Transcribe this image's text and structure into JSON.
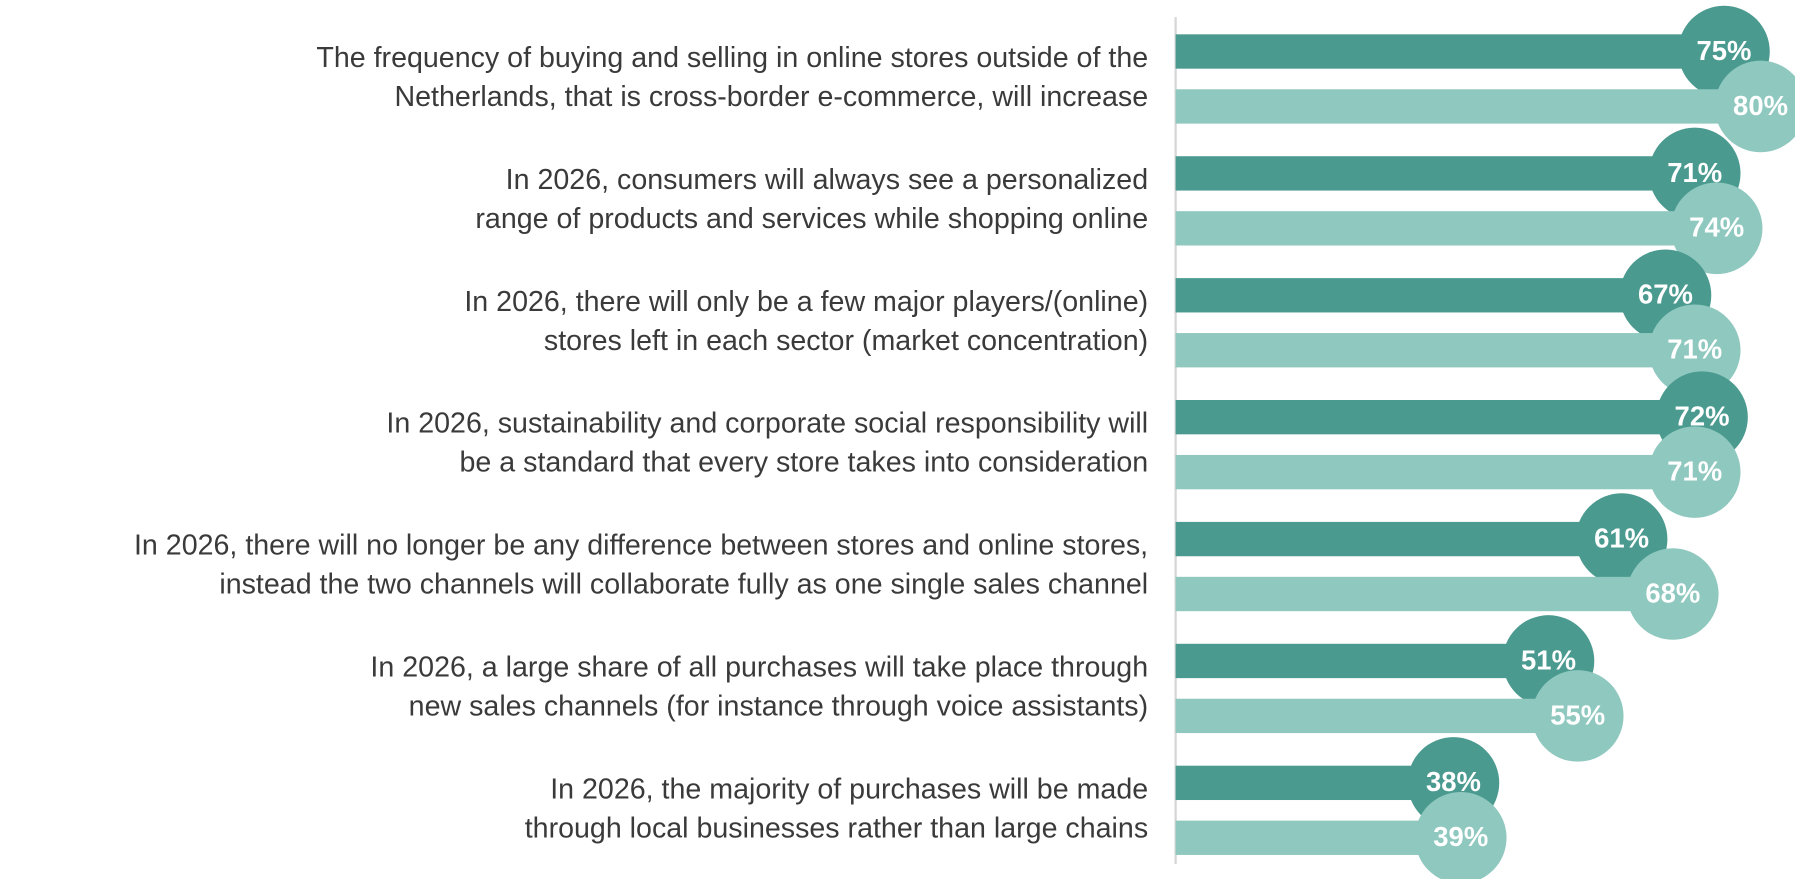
{
  "chart_data": {
    "type": "bar",
    "orientation": "horizontal",
    "categories": [
      [
        "The frequency of buying and selling in online stores outside of the",
        "Netherlands, that is cross-border e-commerce, will increase"
      ],
      [
        "In 2026, consumers will always see a personalized",
        "range of products and services while shopping online"
      ],
      [
        "In 2026, there will only be a few major players/(online)",
        "stores left in each sector (market concentration)"
      ],
      [
        "In 2026, sustainability and corporate social responsibility will",
        "be a standard that every store takes into consideration"
      ],
      [
        "In 2026, there will no longer be any difference between stores and online stores,",
        "instead the two channels will collaborate fully as one single sales channel"
      ],
      [
        "In 2026, a large share of all purchases will take place through",
        "new sales channels (for instance through voice assistants)"
      ],
      [
        "In 2026, the majority of purchases will be made",
        "through local businesses rather than large chains"
      ]
    ],
    "series": [
      {
        "color": "#4a9a8f",
        "values": [
          75,
          71,
          67,
          72,
          61,
          51,
          38
        ],
        "value_labels": [
          "75%",
          "71%",
          "67%",
          "72%",
          "61%",
          "51%",
          "38%"
        ]
      },
      {
        "color": "#8fc8bf",
        "values": [
          80,
          74,
          71,
          71,
          68,
          55,
          39
        ],
        "value_labels": [
          "80%",
          "74%",
          "71%",
          "71%",
          "68%",
          "55%",
          "39%"
        ]
      }
    ],
    "xlim": [
      0,
      85
    ]
  }
}
